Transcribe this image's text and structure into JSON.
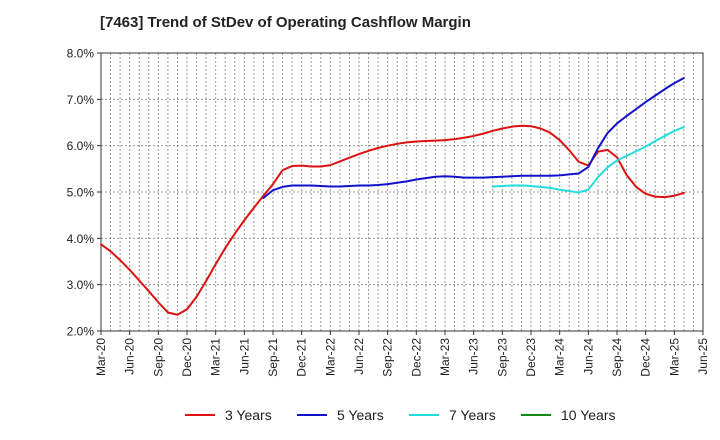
{
  "chart_data": {
    "type": "line",
    "title": "[7463]  Trend of StDev of Operating Cashflow Margin",
    "xlabel": "",
    "ylabel": "",
    "ylim": [
      2.0,
      8.0
    ],
    "yticks": [
      "2.0%",
      "3.0%",
      "4.0%",
      "5.0%",
      "6.0%",
      "7.0%",
      "8.0%"
    ],
    "x_range": [
      "Mar-20",
      "Jun-25"
    ],
    "xticks": [
      "Mar-20",
      "Jun-20",
      "Sep-20",
      "Dec-20",
      "Mar-21",
      "Jun-21",
      "Sep-21",
      "Dec-21",
      "Mar-22",
      "Jun-22",
      "Sep-22",
      "Dec-22",
      "Mar-23",
      "Jun-23",
      "Sep-23",
      "Dec-23",
      "Mar-24",
      "Jun-24",
      "Sep-24",
      "Dec-24",
      "Mar-25",
      "Jun-25"
    ],
    "grid": true,
    "legend_position": "bottom",
    "series": [
      {
        "name": "3 Years",
        "color": "#dd1111",
        "points": [
          [
            "Mar-20",
            3.87
          ],
          [
            "Apr-20",
            3.72
          ],
          [
            "May-20",
            3.53
          ],
          [
            "Jun-20",
            3.32
          ],
          [
            "Jul-20",
            3.09
          ],
          [
            "Aug-20",
            2.86
          ],
          [
            "Sep-20",
            2.62
          ],
          [
            "Oct-20",
            2.4
          ],
          [
            "Nov-20",
            2.35
          ],
          [
            "Dec-20",
            2.47
          ],
          [
            "Jan-21",
            2.74
          ],
          [
            "Feb-21",
            3.08
          ],
          [
            "Mar-21",
            3.44
          ],
          [
            "Apr-21",
            3.79
          ],
          [
            "May-21",
            4.1
          ],
          [
            "Jun-21",
            4.39
          ],
          [
            "Jul-21",
            4.66
          ],
          [
            "Aug-21",
            4.92
          ],
          [
            "Sep-21",
            5.17
          ],
          [
            "Oct-21",
            5.47
          ],
          [
            "Nov-21",
            5.56
          ],
          [
            "Dec-21",
            5.57
          ],
          [
            "Jan-22",
            5.55
          ],
          [
            "Feb-22",
            5.55
          ],
          [
            "Mar-22",
            5.58
          ],
          [
            "Apr-22",
            5.66
          ],
          [
            "May-22",
            5.74
          ],
          [
            "Jun-22",
            5.82
          ],
          [
            "Jul-22",
            5.89
          ],
          [
            "Aug-22",
            5.95
          ],
          [
            "Sep-22",
            6.0
          ],
          [
            "Oct-22",
            6.04
          ],
          [
            "Nov-22",
            6.07
          ],
          [
            "Dec-22",
            6.09
          ],
          [
            "Jan-23",
            6.1
          ],
          [
            "Feb-23",
            6.11
          ],
          [
            "Mar-23",
            6.12
          ],
          [
            "Apr-23",
            6.14
          ],
          [
            "May-23",
            6.17
          ],
          [
            "Jun-23",
            6.21
          ],
          [
            "Jul-23",
            6.26
          ],
          [
            "Aug-23",
            6.32
          ],
          [
            "Sep-23",
            6.37
          ],
          [
            "Oct-23",
            6.41
          ],
          [
            "Nov-23",
            6.43
          ],
          [
            "Dec-23",
            6.42
          ],
          [
            "Jan-24",
            6.37
          ],
          [
            "Feb-24",
            6.28
          ],
          [
            "Mar-24",
            6.12
          ],
          [
            "Apr-24",
            5.9
          ],
          [
            "May-24",
            5.65
          ],
          [
            "Jun-24",
            5.57
          ],
          [
            "Jul-24",
            5.87
          ],
          [
            "Aug-24",
            5.91
          ],
          [
            "Sep-24",
            5.75
          ],
          [
            "Oct-24",
            5.37
          ],
          [
            "Nov-24",
            5.11
          ],
          [
            "Dec-24",
            4.96
          ],
          [
            "Jan-25",
            4.9
          ],
          [
            "Feb-25",
            4.89
          ],
          [
            "Mar-25",
            4.92
          ],
          [
            "Apr-25",
            4.98
          ]
        ]
      },
      {
        "name": "5 Years",
        "color": "#1111cc",
        "points": [
          [
            "Aug-21",
            4.87
          ],
          [
            "Sep-21",
            5.04
          ],
          [
            "Oct-21",
            5.11
          ],
          [
            "Nov-21",
            5.14
          ],
          [
            "Dec-21",
            5.14
          ],
          [
            "Jan-22",
            5.14
          ],
          [
            "Feb-22",
            5.13
          ],
          [
            "Mar-22",
            5.12
          ],
          [
            "Apr-22",
            5.12
          ],
          [
            "May-22",
            5.13
          ],
          [
            "Jun-22",
            5.14
          ],
          [
            "Jul-22",
            5.14
          ],
          [
            "Aug-22",
            5.15
          ],
          [
            "Sep-22",
            5.17
          ],
          [
            "Oct-22",
            5.2
          ],
          [
            "Nov-22",
            5.23
          ],
          [
            "Dec-22",
            5.27
          ],
          [
            "Jan-23",
            5.3
          ],
          [
            "Feb-23",
            5.33
          ],
          [
            "Mar-23",
            5.34
          ],
          [
            "Apr-23",
            5.33
          ],
          [
            "May-23",
            5.31
          ],
          [
            "Jun-23",
            5.31
          ],
          [
            "Jul-23",
            5.31
          ],
          [
            "Aug-23",
            5.32
          ],
          [
            "Sep-23",
            5.33
          ],
          [
            "Oct-23",
            5.34
          ],
          [
            "Nov-23",
            5.35
          ],
          [
            "Dec-23",
            5.35
          ],
          [
            "Jan-24",
            5.35
          ],
          [
            "Feb-24",
            5.35
          ],
          [
            "Mar-24",
            5.36
          ],
          [
            "Apr-24",
            5.38
          ],
          [
            "May-24",
            5.4
          ],
          [
            "Jun-24",
            5.54
          ],
          [
            "Jul-24",
            5.94
          ],
          [
            "Aug-24",
            6.27
          ],
          [
            "Sep-24",
            6.48
          ],
          [
            "Oct-24",
            6.64
          ],
          [
            "Nov-24",
            6.79
          ],
          [
            "Dec-24",
            6.94
          ],
          [
            "Jan-25",
            7.08
          ],
          [
            "Feb-25",
            7.22
          ],
          [
            "Mar-25",
            7.35
          ],
          [
            "Apr-25",
            7.46
          ]
        ]
      },
      {
        "name": "7 Years",
        "color": "#22dddd",
        "points": [
          [
            "Aug-23",
            5.12
          ],
          [
            "Sep-23",
            5.13
          ],
          [
            "Oct-23",
            5.14
          ],
          [
            "Nov-23",
            5.14
          ],
          [
            "Dec-23",
            5.13
          ],
          [
            "Jan-24",
            5.11
          ],
          [
            "Feb-24",
            5.09
          ],
          [
            "Mar-24",
            5.05
          ],
          [
            "Apr-24",
            5.02
          ],
          [
            "May-24",
            4.99
          ],
          [
            "Jun-24",
            5.05
          ],
          [
            "Jul-24",
            5.32
          ],
          [
            "Aug-24",
            5.53
          ],
          [
            "Sep-24",
            5.68
          ],
          [
            "Oct-24",
            5.78
          ],
          [
            "Nov-24",
            5.88
          ],
          [
            "Dec-24",
            5.98
          ],
          [
            "Jan-25",
            6.1
          ],
          [
            "Feb-25",
            6.21
          ],
          [
            "Mar-25",
            6.32
          ],
          [
            "Apr-25",
            6.4
          ]
        ]
      },
      {
        "name": "10 Years",
        "color": "#118811",
        "points": []
      }
    ]
  }
}
